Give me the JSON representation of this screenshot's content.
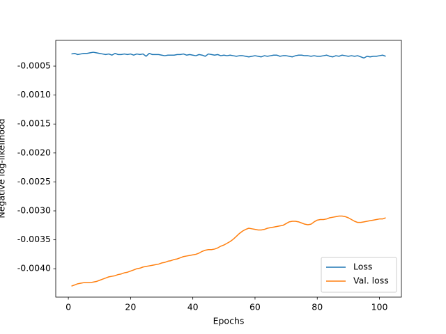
{
  "chart_data": {
    "type": "line",
    "xlabel": "Epochs",
    "ylabel": "Negative log-likelihood",
    "x": [
      1,
      2,
      3,
      4,
      5,
      6,
      7,
      8,
      9,
      10,
      11,
      12,
      13,
      14,
      15,
      16,
      17,
      18,
      19,
      20,
      21,
      22,
      23,
      24,
      25,
      26,
      27,
      28,
      29,
      30,
      31,
      32,
      33,
      34,
      35,
      36,
      37,
      38,
      39,
      40,
      41,
      42,
      43,
      44,
      45,
      46,
      47,
      48,
      49,
      50,
      51,
      52,
      53,
      54,
      55,
      56,
      57,
      58,
      59,
      60,
      61,
      62,
      63,
      64,
      65,
      66,
      67,
      68,
      69,
      70,
      71,
      72,
      73,
      74,
      75,
      76,
      77,
      78,
      79,
      80,
      81,
      82,
      83,
      84,
      85,
      86,
      87,
      88,
      89,
      90,
      91,
      92,
      93,
      94,
      95,
      96,
      97,
      98,
      99,
      100,
      101,
      102
    ],
    "series": [
      {
        "name": "Loss",
        "color": "#1f77b4",
        "values": [
          -0.00029,
          -0.00028,
          -0.0003,
          -0.00029,
          -0.00028,
          -0.00028,
          -0.00027,
          -0.00026,
          -0.00027,
          -0.00028,
          -0.00029,
          -0.0003,
          -0.00029,
          -0.00031,
          -0.00028,
          -0.0003,
          -0.0003,
          -0.00029,
          -0.0003,
          -0.00029,
          -0.00031,
          -0.00029,
          -0.0003,
          -0.00029,
          -0.00033,
          -0.00028,
          -0.0003,
          -0.0003,
          -0.0003,
          -0.00031,
          -0.00032,
          -0.00031,
          -0.00031,
          -0.00031,
          -0.0003,
          -0.0003,
          -0.00029,
          -0.00031,
          -0.0003,
          -0.00031,
          -0.00032,
          -0.0003,
          -0.00031,
          -0.00033,
          -0.00029,
          -0.0003,
          -0.00031,
          -0.0003,
          -0.00032,
          -0.00031,
          -0.00032,
          -0.00031,
          -0.00032,
          -0.00033,
          -0.00032,
          -0.00032,
          -0.00033,
          -0.00034,
          -0.00033,
          -0.00032,
          -0.00033,
          -0.00034,
          -0.00032,
          -0.00033,
          -0.00032,
          -0.00031,
          -0.00031,
          -0.00033,
          -0.00032,
          -0.00032,
          -0.00033,
          -0.00034,
          -0.00032,
          -0.00031,
          -0.00031,
          -0.00032,
          -0.00032,
          -0.00033,
          -0.00032,
          -0.00033,
          -0.00033,
          -0.00032,
          -0.00031,
          -0.00033,
          -0.00034,
          -0.00032,
          -0.00033,
          -0.00031,
          -0.00032,
          -0.00033,
          -0.00032,
          -0.00033,
          -0.00032,
          -0.00034,
          -0.00036,
          -0.00033,
          -0.00034,
          -0.00033,
          -0.00033,
          -0.00032,
          -0.00031,
          -0.00033
        ]
      },
      {
        "name": "Val. loss",
        "color": "#ff7f0e",
        "values": [
          -0.0043,
          -0.00428,
          -0.00426,
          -0.00425,
          -0.00424,
          -0.00424,
          -0.00424,
          -0.00423,
          -0.00422,
          -0.0042,
          -0.00418,
          -0.00416,
          -0.00414,
          -0.00413,
          -0.00412,
          -0.0041,
          -0.00409,
          -0.00407,
          -0.00406,
          -0.00404,
          -0.00402,
          -0.004,
          -0.00399,
          -0.00397,
          -0.00396,
          -0.00395,
          -0.00394,
          -0.00393,
          -0.00392,
          -0.0039,
          -0.00389,
          -0.00387,
          -0.00386,
          -0.00384,
          -0.00383,
          -0.00381,
          -0.00379,
          -0.00378,
          -0.00377,
          -0.00376,
          -0.00375,
          -0.00373,
          -0.0037,
          -0.00368,
          -0.00367,
          -0.00367,
          -0.00366,
          -0.00364,
          -0.00361,
          -0.00359,
          -0.00356,
          -0.00353,
          -0.00349,
          -0.00344,
          -0.00339,
          -0.00335,
          -0.00332,
          -0.0033,
          -0.00331,
          -0.00332,
          -0.00333,
          -0.00333,
          -0.00332,
          -0.0033,
          -0.00329,
          -0.00328,
          -0.00327,
          -0.00326,
          -0.00325,
          -0.00322,
          -0.00319,
          -0.00318,
          -0.00318,
          -0.00319,
          -0.00321,
          -0.00323,
          -0.00324,
          -0.00323,
          -0.00319,
          -0.00316,
          -0.00315,
          -0.00315,
          -0.00314,
          -0.00312,
          -0.00311,
          -0.0031,
          -0.00309,
          -0.00309,
          -0.0031,
          -0.00312,
          -0.00315,
          -0.00318,
          -0.0032,
          -0.0032,
          -0.00319,
          -0.00318,
          -0.00317,
          -0.00316,
          -0.00315,
          -0.00314,
          -0.00314,
          -0.00312
        ]
      }
    ],
    "xlim": [
      -4.05,
      107.05
    ],
    "xticks": [
      0,
      20,
      40,
      60,
      80,
      100
    ],
    "ylim": [
      -0.00449,
      -5.5e-05
    ],
    "yticks": [
      {
        "value": -0.004,
        "label": "-0.0040"
      },
      -0.0035,
      {
        "value": -0.003,
        "label": "-0.0030"
      },
      -0.0025,
      {
        "value": -0.002,
        "label": "-0.0020"
      },
      -0.0015,
      {
        "value": -0.001,
        "label": "-0.0010"
      },
      -0.0005
    ],
    "grid": false,
    "legend": "lower right"
  }
}
